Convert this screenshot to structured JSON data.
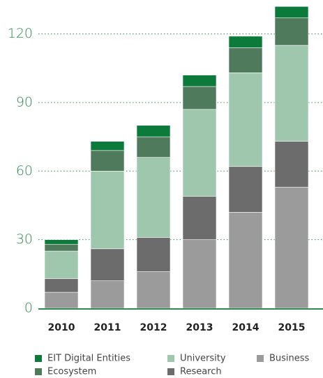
{
  "chart_data": {
    "type": "stacked-bar",
    "categories": [
      "2010",
      "2011",
      "2012",
      "2013",
      "2014",
      "2015"
    ],
    "series": [
      {
        "name": "Business",
        "color": "#9b9b9b",
        "values": [
          7,
          12,
          16,
          30,
          42,
          53
        ]
      },
      {
        "name": "Research",
        "color": "#6c6c6c",
        "values": [
          6,
          14,
          15,
          19,
          20,
          20
        ]
      },
      {
        "name": "University",
        "color": "#9fc7ae",
        "values": [
          12,
          34,
          35,
          38,
          41,
          42
        ]
      },
      {
        "name": "Ecosystem",
        "color": "#4f7a5b",
        "values": [
          3,
          9,
          9,
          10,
          11,
          12
        ]
      },
      {
        "name": "EIT Digital Entities",
        "color": "#0b7a3b",
        "values": [
          2,
          4,
          5,
          5,
          5,
          5
        ]
      }
    ],
    "ylim": [
      0,
      133
    ],
    "yticks": [
      0,
      30,
      60,
      90,
      120
    ],
    "grid": true
  }
}
